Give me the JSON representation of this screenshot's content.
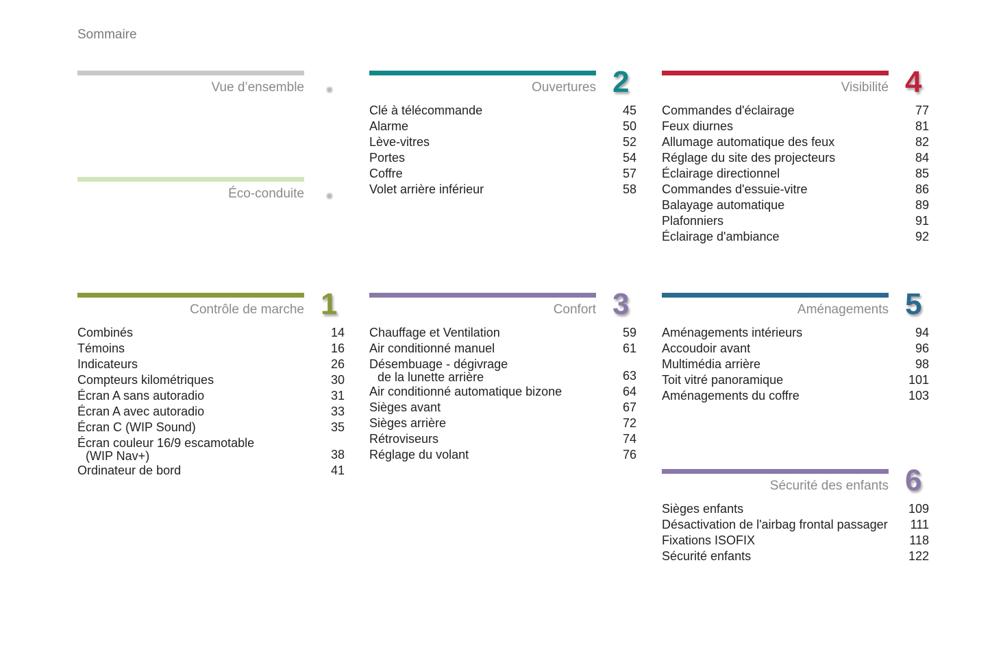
{
  "heading": "Sommaire",
  "sections": [
    {
      "id": "vue",
      "title": "Vue d’ensemble",
      "number": "",
      "color": "#c8c8c8",
      "entries": []
    },
    {
      "id": "eco",
      "title": "Éco-conduite",
      "number": "",
      "color": "#d2e6bd",
      "entries": []
    },
    {
      "id": "s1",
      "title": "Contrôle de marche",
      "number": "1",
      "color": "#8c983c",
      "entries": [
        {
          "lines": [
            "Combinés"
          ],
          "page": "14"
        },
        {
          "lines": [
            "Témoins"
          ],
          "page": "16"
        },
        {
          "lines": [
            "Indicateurs"
          ],
          "page": "26"
        },
        {
          "lines": [
            "Compteurs kilométriques"
          ],
          "page": "30"
        },
        {
          "lines": [
            "Écran A sans autoradio"
          ],
          "page": "31"
        },
        {
          "lines": [
            "Écran A avec autoradio"
          ],
          "page": "33"
        },
        {
          "lines": [
            "Écran C (WIP Sound)"
          ],
          "page": "35"
        },
        {
          "lines": [
            "Écran couleur 16/9 escamotable",
            "(WIP Nav+)"
          ],
          "page": "38"
        },
        {
          "lines": [
            "Ordinateur de bord"
          ],
          "page": "41"
        }
      ]
    },
    {
      "id": "s2",
      "title": "Ouvertures",
      "number": "2",
      "color": "#15878b",
      "entries": [
        {
          "lines": [
            "Clé à télécommande"
          ],
          "page": "45"
        },
        {
          "lines": [
            "Alarme"
          ],
          "page": "50"
        },
        {
          "lines": [
            "Lève-vitres"
          ],
          "page": "52"
        },
        {
          "lines": [
            "Portes"
          ],
          "page": "54"
        },
        {
          "lines": [
            "Coffre"
          ],
          "page": "57"
        },
        {
          "lines": [
            "Volet arrière inférieur"
          ],
          "page": "58"
        }
      ]
    },
    {
      "id": "s3",
      "title": "Confort",
      "number": "3",
      "color": "#8a78a8",
      "entries": [
        {
          "lines": [
            "Chauffage et Ventilation"
          ],
          "page": "59"
        },
        {
          "lines": [
            "Air conditionné manuel"
          ],
          "page": "61"
        },
        {
          "lines": [
            "Désembuage - dégivrage",
            "de la lunette arrière"
          ],
          "page": "63"
        },
        {
          "lines": [
            "Air conditionné automatique bizone"
          ],
          "page": "64"
        },
        {
          "lines": [
            "Sièges avant"
          ],
          "page": "67"
        },
        {
          "lines": [
            "Sièges arrière"
          ],
          "page": "72"
        },
        {
          "lines": [
            "Rétroviseurs"
          ],
          "page": "74"
        },
        {
          "lines": [
            "Réglage du volant"
          ],
          "page": "76"
        }
      ]
    },
    {
      "id": "s4",
      "title": "Visibilité",
      "number": "4",
      "color": "#c0223a",
      "entries": [
        {
          "lines": [
            "Commandes d'éclairage"
          ],
          "page": "77"
        },
        {
          "lines": [
            "Feux diurnes"
          ],
          "page": "81"
        },
        {
          "lines": [
            "Allumage automatique des feux"
          ],
          "page": "82"
        },
        {
          "lines": [
            "Réglage du site des projecteurs"
          ],
          "page": "84"
        },
        {
          "lines": [
            "Éclairage directionnel"
          ],
          "page": "85"
        },
        {
          "lines": [
            "Commandes d'essuie-vitre"
          ],
          "page": "86"
        },
        {
          "lines": [
            "Balayage automatique"
          ],
          "page": "89"
        },
        {
          "lines": [
            "Plafonniers"
          ],
          "page": "91"
        },
        {
          "lines": [
            "Éclairage d'ambiance"
          ],
          "page": "92"
        }
      ]
    },
    {
      "id": "s5",
      "title": "Aménagements",
      "number": "5",
      "color": "#2b6b90",
      "entries": [
        {
          "lines": [
            "Aménagements intérieurs"
          ],
          "page": "94"
        },
        {
          "lines": [
            "Accoudoir avant"
          ],
          "page": "96"
        },
        {
          "lines": [
            "Multimédia arrière"
          ],
          "page": "98"
        },
        {
          "lines": [
            "Toit vitré panoramique"
          ],
          "page": "101"
        },
        {
          "lines": [
            "Aménagements du coffre"
          ],
          "page": "103"
        }
      ]
    },
    {
      "id": "s6",
      "title": "Sécurité des enfants",
      "number": "6",
      "color": "#8a78a8",
      "entries": [
        {
          "lines": [
            "Sièges enfants"
          ],
          "page": "109"
        },
        {
          "lines": [
            "Désactivation de l'airbag frontal passager"
          ],
          "page": "111"
        },
        {
          "lines": [
            "Fixations ISOFIX"
          ],
          "page": "118"
        },
        {
          "lines": [
            "Sécurité enfants"
          ],
          "page": "122"
        }
      ]
    }
  ]
}
